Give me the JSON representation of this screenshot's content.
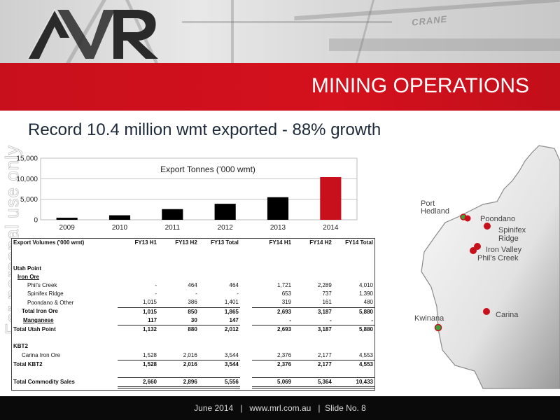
{
  "header": {
    "photo_sign_text": "CRANE",
    "logo_name": "MRL logo",
    "section_title": "MINING OPERATIONS"
  },
  "watermark": "For personal use only",
  "slide": {
    "heading": "Record 10.4 million wmt exported - 88% growth"
  },
  "chart_data": {
    "type": "bar",
    "title": "Export Tonnes (’000 wmt)",
    "categories": [
      "2009",
      "2010",
      "2011",
      "2012",
      "2013",
      "2014"
    ],
    "values": [
      500,
      1100,
      2600,
      3900,
      5500,
      10400
    ],
    "ylim": [
      0,
      15000
    ],
    "yticks": [
      "0",
      "5,000",
      "10,000",
      "15,000"
    ],
    "ytick_values": [
      0,
      5000,
      10000,
      15000
    ],
    "bar_color": "#000000",
    "highlight_color": "#c8101c",
    "highlight_index": 5,
    "grid": true
  },
  "table": {
    "header": {
      "label": "Export Volumes ('000 wmt)",
      "cols": [
        "FY13 H1",
        "FY13 H2",
        "FY13 Total",
        "FY14 H1",
        "FY14 H2",
        "FY14 Total"
      ]
    },
    "rows": {
      "utah_point": {
        "label": "Utah Point"
      },
      "iron_ore": {
        "label": "Iron Ore"
      },
      "phils_creek": {
        "label": "Phil's Creek",
        "v": [
          "-",
          "464",
          "464",
          "1,721",
          "2,289",
          "4,010"
        ]
      },
      "spinifex_ridge": {
        "label": "Spinifex Ridge",
        "v": [
          "-",
          "-",
          "-",
          "653",
          "737",
          "1,390"
        ]
      },
      "poondano": {
        "label": "Poondano & Other",
        "v": [
          "1,015",
          "386",
          "1,401",
          "319",
          "161",
          "480"
        ]
      },
      "total_iron_ore": {
        "label": "Total Iron Ore",
        "v": [
          "1,015",
          "850",
          "1,865",
          "2,693",
          "3,187",
          "5,880"
        ]
      },
      "manganese": {
        "label": "Manganese",
        "v": [
          "117",
          "30",
          "147",
          "-",
          "-",
          "-"
        ]
      },
      "total_utah_point": {
        "label": "Total Utah Point",
        "v": [
          "1,132",
          "880",
          "2,012",
          "2,693",
          "3,187",
          "5,880"
        ]
      },
      "kbt2": {
        "label": "KBT2"
      },
      "carina_iron_ore": {
        "label": "Carina Iron Ore",
        "v": [
          "1,528",
          "2,016",
          "3,544",
          "2,376",
          "2,177",
          "4,553"
        ]
      },
      "total_kbt2": {
        "label": "Total KBT2",
        "v": [
          "1,528",
          "2,016",
          "3,544",
          "2,376",
          "2,177",
          "4,553"
        ]
      },
      "total_commodity_sales": {
        "label": "Total Commodity Sales",
        "v": [
          "2,660",
          "2,896",
          "5,556",
          "5,069",
          "5,364",
          "10,433"
        ]
      }
    }
  },
  "map": {
    "labels": {
      "port_hedland": [
        "Port",
        "Hedland"
      ],
      "poondano": "Poondano",
      "spinifex_ridge": [
        "Spinifex",
        "Ridge"
      ],
      "iron_valley": "Iron Valley",
      "phils_creek": "Phil’s Creek",
      "carina": "Carina",
      "kwinana": "Kwinana"
    },
    "port_color": "#3aa33a",
    "mine_color": "#c8101c"
  },
  "footer": {
    "text": "June 2014   |   www.mrl.com.au   |  Slide No. 8"
  }
}
